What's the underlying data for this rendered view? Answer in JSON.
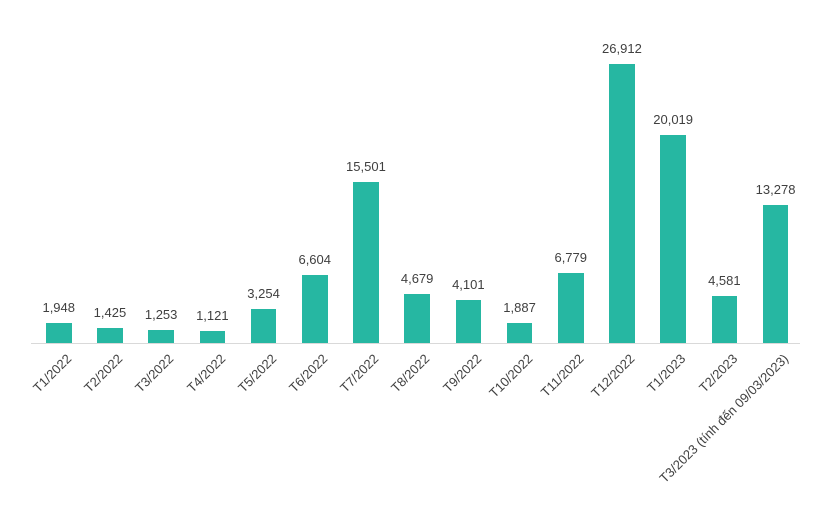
{
  "chart_data": {
    "type": "bar",
    "title": "",
    "xlabel": "",
    "ylabel": "",
    "categories": [
      "T1/2022",
      "T2/2022",
      "T3/2022",
      "T4/2022",
      "T5/2022",
      "T6/2022",
      "T7/2022",
      "T8/2022",
      "T9/2022",
      "T10/2022",
      "T11/2022",
      "T12/2022",
      "T1/2023",
      "T2/2023",
      "T3/2023 (tính đến 09/03/2023)"
    ],
    "values": [
      1948,
      1425,
      1253,
      1121,
      3254,
      6604,
      15501,
      4679,
      4101,
      1887,
      6779,
      26912,
      20019,
      4581,
      13278
    ],
    "value_labels": [
      "1,948",
      "1,425",
      "1,253",
      "1,121",
      "3,254",
      "6,604",
      "15,501",
      "4,679",
      "4,101",
      "1,887",
      "6,779",
      "26,912",
      "20,019",
      "4,581",
      "13,278"
    ],
    "ylim": [
      0,
      27000
    ],
    "grid": false,
    "legend": null,
    "y_axis_visible": false,
    "data_labels_visible": true,
    "colors": {
      "bar": "#26b7a2",
      "label_text": "#404040",
      "axis_line": "#d9d9d9",
      "background": "#ffffff"
    }
  }
}
